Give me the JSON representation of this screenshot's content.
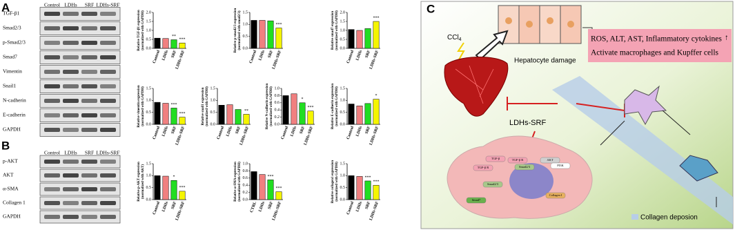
{
  "panel_labels": [
    "A",
    "B",
    "C"
  ],
  "blots": {
    "A": {
      "columns": [
        "Control",
        "LDHs",
        "SRF",
        "LDHs-SRF"
      ],
      "rows": [
        "TGF-β1",
        "Smad2/3",
        "p-Smad2/3",
        "Smad7",
        "Vimentin",
        "Snail1",
        "N-cadherin",
        "E-cadherin",
        "GAPDH"
      ]
    },
    "B": {
      "columns": [
        "Control",
        "LDHs",
        "SRF",
        "LDHs-SRF"
      ],
      "rows": [
        "p-AKT",
        "AKT",
        "α-SMA",
        "Collagen 1",
        "GAPDH"
      ]
    }
  },
  "chart_data": [
    {
      "type": "bar",
      "ylabel": "Relative TGF-β1 expression",
      "ylabel_note": "(normalized with GAPDH)",
      "categories": [
        "Control",
        "LDHs",
        "SRF",
        "LDHs-SRF"
      ],
      "values": [
        0.57,
        0.55,
        0.48,
        0.3
      ],
      "colors": [
        "#000000",
        "#f08080",
        "#22dd22",
        "#f5f500"
      ],
      "annotations": [
        null,
        null,
        "**",
        "***"
      ],
      "ylim": [
        0,
        2
      ],
      "yticks": [
        {
          "value": 0,
          "label": "0.0"
        },
        {
          "value": 0.5,
          "label": "0.5"
        },
        {
          "value": 1,
          "label": "1.0"
        },
        {
          "value": 1.5,
          "label": "1.5"
        },
        {
          "value": 2,
          "label": "2.0"
        }
      ]
    },
    {
      "type": "bar",
      "ylabel": "Relative p-smad2/3 expression",
      "ylabel_note": "(normalized with smad2/3)",
      "categories": [
        "Control",
        "LDHs",
        "SRF",
        "LDHs-SRF"
      ],
      "values": [
        1.17,
        1.17,
        1.15,
        0.85
      ],
      "colors": [
        "#000000",
        "#f08080",
        "#22dd22",
        "#f5f500"
      ],
      "annotations": [
        null,
        null,
        null,
        "***"
      ],
      "ylim": [
        0,
        1.5
      ],
      "yticks": [
        {
          "value": 0,
          "label": "0.0"
        },
        {
          "value": 0.5,
          "label": "0.5"
        },
        {
          "value": 1,
          "label": "1.0"
        },
        {
          "value": 1.5,
          "label": "1.5"
        }
      ]
    },
    {
      "type": "bar",
      "ylabel": "Relative smad7 expression",
      "ylabel_note": "(normalized with GAPDH)",
      "categories": [
        "Control",
        "LDHs",
        "SRF",
        "LDHs-SRF"
      ],
      "values": [
        1.05,
        1.0,
        1.1,
        1.5
      ],
      "colors": [
        "#000000",
        "#f08080",
        "#22dd22",
        "#f5f500"
      ],
      "annotations": [
        null,
        null,
        null,
        "***"
      ],
      "ylim": [
        0,
        2
      ],
      "yticks": [
        {
          "value": 0,
          "label": "0.0"
        },
        {
          "value": 0.5,
          "label": "0.5"
        },
        {
          "value": 1,
          "label": "1.0"
        },
        {
          "value": 1.5,
          "label": "1.5"
        },
        {
          "value": 2,
          "label": "2.0"
        }
      ]
    },
    {
      "type": "bar",
      "ylabel": "Relative vimentin expression",
      "ylabel_note": "(normalized with GAPDH)",
      "categories": [
        "Control",
        "LDHs",
        "SRF",
        "LDHs-SRF"
      ],
      "values": [
        0.92,
        0.88,
        0.68,
        0.3
      ],
      "colors": [
        "#000000",
        "#f08080",
        "#22dd22",
        "#f5f500"
      ],
      "annotations": [
        null,
        null,
        "***",
        "***"
      ],
      "ylim": [
        0,
        1.5
      ],
      "yticks": [
        {
          "value": 0,
          "label": "0.0"
        },
        {
          "value": 0.5,
          "label": "0.5"
        },
        {
          "value": 1,
          "label": "1.0"
        },
        {
          "value": 1.5,
          "label": "1.5"
        }
      ]
    },
    {
      "type": "bar",
      "ylabel": "Relative snail1 expression",
      "ylabel_note": "(normalized with GAPDH)",
      "categories": [
        "Control",
        "LDHs",
        "SRF",
        "LDHs-SRF"
      ],
      "values": [
        0.8,
        0.82,
        0.62,
        0.42
      ],
      "colors": [
        "#000000",
        "#f08080",
        "#22dd22",
        "#f5f500"
      ],
      "annotations": [
        null,
        null,
        null,
        "**"
      ],
      "ylim": [
        0,
        1.5
      ],
      "yticks": [
        {
          "value": 0,
          "label": "0.0"
        },
        {
          "value": 0.5,
          "label": "0.5"
        },
        {
          "value": 1,
          "label": "1.0"
        },
        {
          "value": 1.5,
          "label": "1.5"
        }
      ]
    },
    {
      "type": "bar",
      "ylabel": "Relative N-cadherin expression",
      "ylabel_note": "(normalized with GAPDH)",
      "categories": [
        "Control",
        "LDHs",
        "SRF",
        "LDHs-SRF"
      ],
      "values": [
        0.8,
        0.85,
        0.6,
        0.37
      ],
      "colors": [
        "#000000",
        "#f08080",
        "#22dd22",
        "#f5f500"
      ],
      "annotations": [
        null,
        null,
        "*",
        "***"
      ],
      "ylim": [
        0,
        1
      ],
      "yticks": [
        {
          "value": 0,
          "label": "0.0"
        },
        0.2,
        0.4,
        0.6,
        0.8,
        {
          "value": 1,
          "label": "1.0"
        }
      ]
    },
    {
      "type": "bar",
      "ylabel": "Relative E-cadherin expression",
      "ylabel_note": "(normalized with GAPDH)",
      "categories": [
        "Control",
        "LDHs",
        "SRF",
        "LDHs-SRF"
      ],
      "values": [
        0.85,
        0.77,
        0.87,
        1.05
      ],
      "colors": [
        "#000000",
        "#f08080",
        "#22dd22",
        "#f5f500"
      ],
      "annotations": [
        null,
        null,
        null,
        "*"
      ],
      "ylim": [
        0,
        1.5
      ],
      "yticks": [
        {
          "value": 0,
          "label": "0.0"
        },
        {
          "value": 0.5,
          "label": "0.5"
        },
        {
          "value": 1,
          "label": "1.0"
        },
        {
          "value": 1.5,
          "label": "1.5"
        }
      ]
    },
    {
      "type": "bar",
      "ylabel": "Relative p-AKT expression",
      "ylabel_note": "(normalized with AKT)",
      "categories": [
        "Control",
        "LDHs",
        "SRF",
        "LDHs-SRF"
      ],
      "values": [
        1.0,
        0.98,
        0.8,
        0.35
      ],
      "colors": [
        "#000000",
        "#f08080",
        "#22dd22",
        "#f5f500"
      ],
      "annotations": [
        null,
        null,
        "*",
        "***"
      ],
      "ylim": [
        0,
        1.5
      ],
      "yticks": [
        {
          "value": 0,
          "label": "0.0"
        },
        {
          "value": 0.5,
          "label": "0.5"
        },
        {
          "value": 1,
          "label": "1.0"
        },
        {
          "value": 1.5,
          "label": "1.5"
        }
      ]
    },
    {
      "type": "bar",
      "ylabel": "Relative α-SMA expression",
      "ylabel_note": "(normalized with GAPDH)",
      "categories": [
        "CTRL",
        "LDHs",
        "SRF",
        "LDHs-SRF"
      ],
      "values": [
        0.78,
        0.7,
        0.55,
        0.22
      ],
      "colors": [
        "#000000",
        "#f08080",
        "#22dd22",
        "#f5f500"
      ],
      "annotations": [
        null,
        null,
        "***",
        "***"
      ],
      "ylim": [
        0,
        1
      ],
      "yticks": [
        {
          "value": 0,
          "label": "0.0"
        },
        0.2,
        0.4,
        0.6,
        0.8,
        {
          "value": 1,
          "label": "1.0"
        }
      ]
    },
    {
      "type": "bar",
      "ylabel": "Relative collagen1 expression",
      "ylabel_note": "(normalized with GAPDH)",
      "categories": [
        "Control",
        "LDHs",
        "SRF",
        "LDHs-SRF"
      ],
      "values": [
        1.0,
        0.97,
        0.78,
        0.6
      ],
      "colors": [
        "#000000",
        "#f08080",
        "#22dd22",
        "#f5f500"
      ],
      "annotations": [
        null,
        null,
        "***",
        "***"
      ],
      "ylim": [
        0,
        1.5
      ],
      "yticks": [
        {
          "value": 0,
          "label": "0.0"
        },
        {
          "value": 0.5,
          "label": "0.5"
        },
        {
          "value": 1,
          "label": "1.0"
        },
        {
          "value": 1.5,
          "label": "1.5"
        }
      ]
    }
  ],
  "diagram": {
    "ccl4": "CCl",
    "ccl4_sub": "4",
    "hepatocyte": "Hepatocyte damage",
    "effects_line1": "ROS, ALT, AST, Inflammatory cytokines",
    "effects_arrow": "↑",
    "effects_line2": "Activate macrophages and Kupffer cells",
    "drug": "LDHs-SRF",
    "collagen": "Collagen deposion",
    "cell_labels": [
      "TGF-β",
      "TGF-β R",
      "TGF-β R",
      "Smad2/3",
      "Smad2/3",
      "AKT",
      "PI3K",
      "Smad7",
      "Collagen I"
    ]
  }
}
